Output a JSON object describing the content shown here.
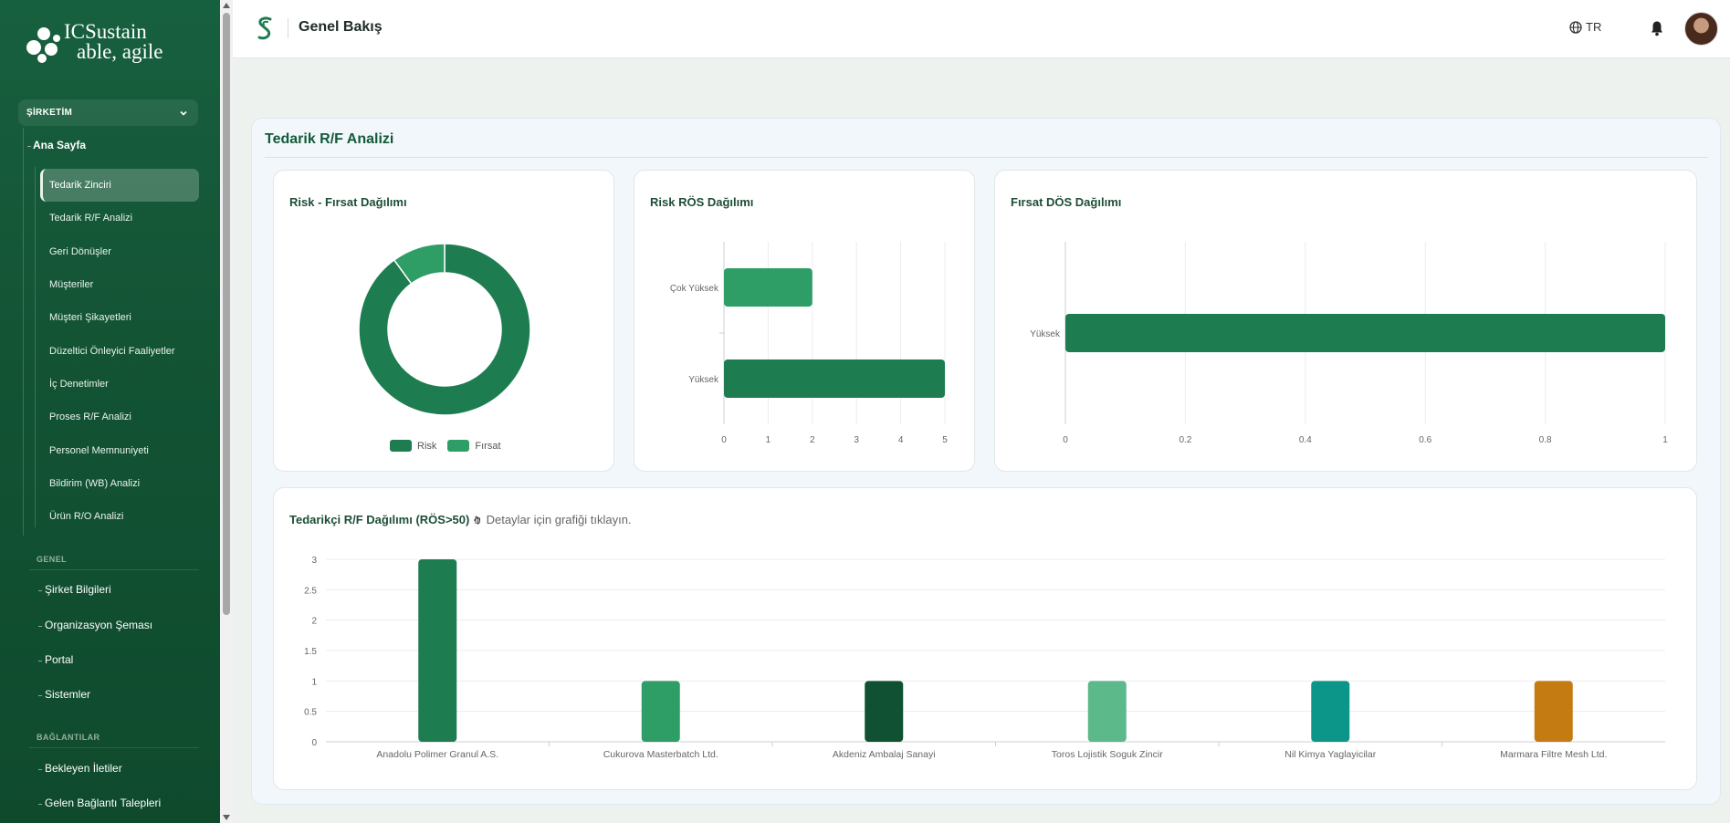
{
  "sidebar": {
    "logo": {
      "line1": "ICSustain",
      "line2": "able, agile"
    },
    "section": "ŞİRKETİM",
    "home": "Ana Sayfa",
    "subitems": [
      {
        "label": "Tedarik Zinciri",
        "active": true
      },
      {
        "label": "Tedarik R/F Analizi"
      },
      {
        "label": "Geri Dönüşler"
      },
      {
        "label": "Müşteriler"
      },
      {
        "label": "Müşteri Şikayetleri"
      },
      {
        "label": "Düzeltici Önleyici Faaliyetler"
      },
      {
        "label": "İç Denetimler"
      },
      {
        "label": "Proses R/F Analizi"
      },
      {
        "label": "Personel Memnuniyeti"
      },
      {
        "label": "Bildirim (WB) Analizi"
      },
      {
        "label": "Ürün R/O Analizi"
      }
    ],
    "general_label": "GENEL",
    "general_items": [
      "Şirket Bilgileri",
      "Organizasyon Şeması",
      "Portal",
      "Sistemler"
    ],
    "links_label": "BAĞLANTILAR",
    "links_items": [
      "Bekleyen İletiler",
      "Gelen Bağlantı Talepleri"
    ]
  },
  "header": {
    "title": "Genel Bakış",
    "lang": "TR"
  },
  "main": {
    "title": "Tedarik R/F Analizi"
  },
  "colors": {
    "primary": "#1e7d50",
    "light": "#2e9e66",
    "dark": "#0f5132",
    "mint": "#5bb98a",
    "teal": "#0c968a",
    "orange": "#c47c12"
  },
  "charts": {
    "donut": {
      "title": "Risk - Fırsat Dağılımı",
      "chart_data": {
        "type": "pie",
        "donut": true,
        "labels": [
          "Risk",
          "Fırsat"
        ],
        "values": [
          9,
          1
        ],
        "colors": [
          "#1e7d50",
          "#2e9e66"
        ],
        "legend": "bottom"
      }
    },
    "risk": {
      "title": "Risk RÖS Dağılımı",
      "chart_data": {
        "type": "bar",
        "orientation": "horizontal",
        "categories": [
          "Çok Yüksek",
          "Yüksek"
        ],
        "values": [
          2,
          5
        ],
        "colors": [
          "#2e9e66",
          "#1e7d50"
        ],
        "xlim": [
          0,
          5
        ],
        "xticks": [
          "0",
          "1",
          "2",
          "3",
          "4",
          "5"
        ]
      }
    },
    "opp": {
      "title": "Fırsat DÖS Dağılımı",
      "chart_data": {
        "type": "bar",
        "orientation": "horizontal",
        "categories": [
          "Yüksek"
        ],
        "values": [
          1
        ],
        "colors": [
          "#1e7d50"
        ],
        "xlim": [
          0,
          1
        ],
        "xticks": [
          "0",
          "0.2",
          "0.4",
          "0.6",
          "0.8",
          "1"
        ]
      }
    },
    "suppliers": {
      "title": "Tedarikçi R/F Dağılımı (RÖS>50)",
      "hint": "Detaylar için grafiği tıklayın.",
      "chart_data": {
        "type": "bar",
        "categories": [
          "Anadolu Polimer Granul A.S.",
          "Cukurova Masterbatch Ltd.",
          "Akdeniz Ambalaj Sanayi",
          "Toros Lojistik Soguk Zincir",
          "Nil Kimya Yaglayicilar",
          "Marmara Filtre Mesh Ltd."
        ],
        "values": [
          3,
          1,
          1,
          1,
          1,
          1
        ],
        "colors": [
          "#1e7d50",
          "#2e9e66",
          "#0f5132",
          "#5bb98a",
          "#0c968a",
          "#c47c12"
        ],
        "ylim": [
          0,
          3
        ],
        "yticks": [
          "0",
          "0.5",
          "1",
          "1.5",
          "2",
          "2.5",
          "3"
        ]
      }
    }
  }
}
